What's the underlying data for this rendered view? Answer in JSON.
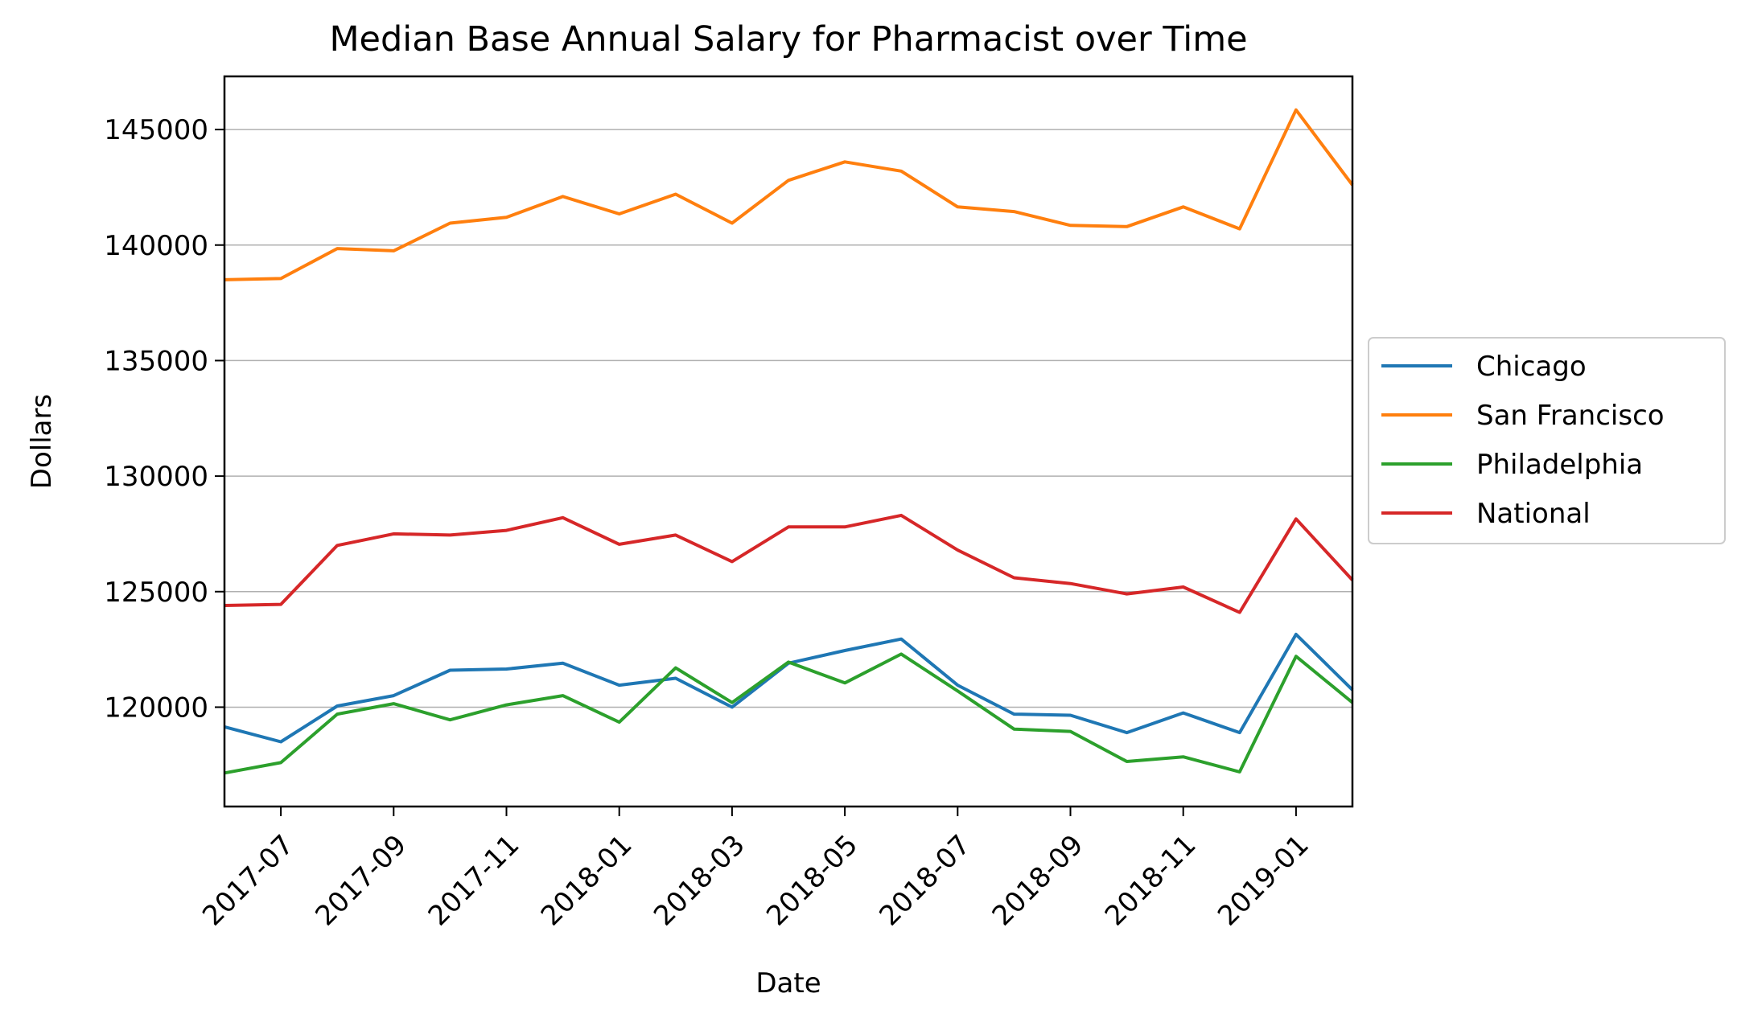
{
  "chart_data": {
    "type": "line",
    "title": "Median Base Annual Salary for Pharmacist over Time",
    "xlabel": "Date",
    "ylabel": "Dollars",
    "x": [
      "2017-06",
      "2017-07",
      "2017-08",
      "2017-09",
      "2017-10",
      "2017-11",
      "2017-12",
      "2018-01",
      "2018-02",
      "2018-03",
      "2018-04",
      "2018-05",
      "2018-06",
      "2018-07",
      "2018-08",
      "2018-09",
      "2018-10",
      "2018-11",
      "2018-12",
      "2019-01",
      "2019-02"
    ],
    "xlim": [
      "2017-06",
      "2019-02"
    ],
    "x_ticks": [
      "2017-07",
      "2017-09",
      "2017-11",
      "2018-01",
      "2018-03",
      "2018-05",
      "2018-07",
      "2018-09",
      "2018-11",
      "2019-01"
    ],
    "ylim": [
      115700,
      147300
    ],
    "y_ticks": [
      120000,
      125000,
      130000,
      135000,
      140000,
      145000
    ],
    "grid": "horizontal",
    "legend": "right, outside plot",
    "series": [
      {
        "name": "Chicago",
        "color": "#1f77b4",
        "values": [
          119150,
          118500,
          120050,
          120500,
          121600,
          121650,
          121900,
          120950,
          121250,
          120000,
          121900,
          122450,
          122950,
          120950,
          119700,
          119650,
          118900,
          119750,
          118900,
          123150,
          120750
        ]
      },
      {
        "name": "San Francisco",
        "color": "#ff7f0e",
        "values": [
          138500,
          138550,
          139850,
          139750,
          140950,
          141200,
          142100,
          141350,
          142200,
          140950,
          142800,
          143600,
          143200,
          141650,
          141450,
          140850,
          140800,
          141650,
          140700,
          145850,
          142600
        ]
      },
      {
        "name": "Philadelphia",
        "color": "#2ca02c",
        "values": [
          117150,
          117600,
          119700,
          120150,
          119450,
          120100,
          120500,
          119350,
          121700,
          120200,
          121950,
          121050,
          122300,
          120700,
          119050,
          118950,
          117650,
          117850,
          117200,
          122200,
          120200
        ]
      },
      {
        "name": "National",
        "color": "#d62728",
        "values": [
          124400,
          124450,
          127000,
          127500,
          127450,
          127650,
          128200,
          127050,
          127450,
          126300,
          127800,
          127800,
          128300,
          126800,
          125600,
          125350,
          124900,
          125200,
          124100,
          128150,
          125500
        ]
      }
    ]
  }
}
